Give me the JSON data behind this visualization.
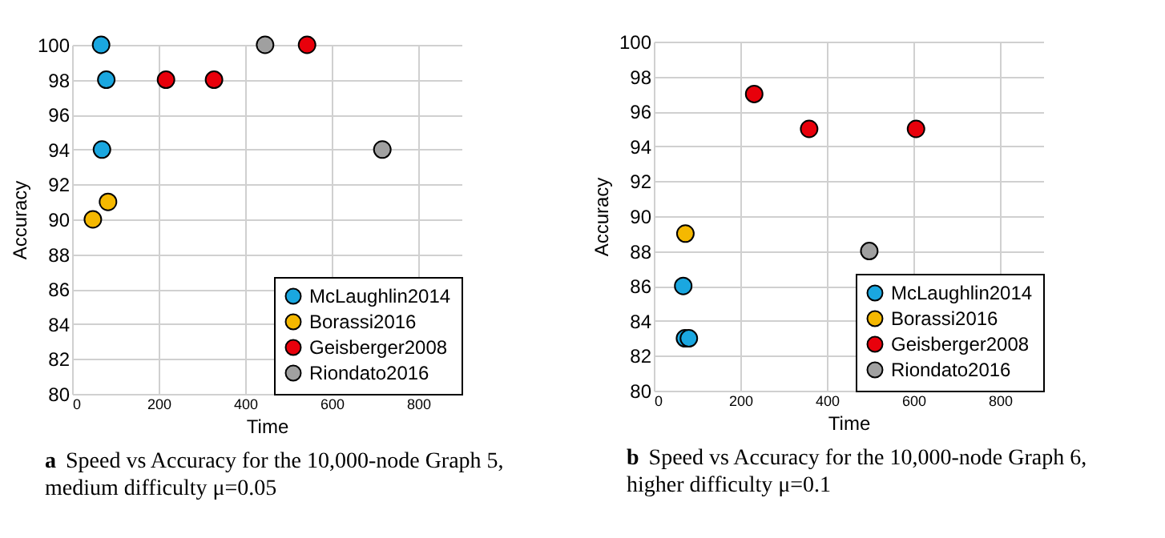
{
  "chart_data": [
    {
      "type": "scatter",
      "title": "a",
      "subtitle": "Speed vs Accuracy for the 10,000-node Graph 5, medium difficulty μ=0.05",
      "xlabel": "Time",
      "ylabel": "Accuracy",
      "xlim": [
        0,
        900
      ],
      "xticks": [
        0,
        200,
        400,
        600,
        800
      ],
      "ylim": [
        80,
        100
      ],
      "yticks": [
        80,
        82,
        84,
        86,
        88,
        90,
        92,
        94,
        96,
        98,
        100
      ],
      "grid": true,
      "legend": "bottom right",
      "marker": "circle",
      "series": [
        {
          "name": "McLaughlin2014",
          "color": "#1aa7e0",
          "x": [
            67,
            79,
            69
          ],
          "values": [
            100,
            98,
            94
          ]
        },
        {
          "name": "Borassi2016",
          "color": "#f5b800",
          "x": [
            48,
            83
          ],
          "values": [
            90,
            91
          ]
        },
        {
          "name": "Geisberger2008",
          "color": "#e8000b",
          "x": [
            217,
            328,
            543
          ],
          "values": [
            98,
            98,
            100
          ]
        },
        {
          "name": "Riondato2016",
          "color": "#a0a0a0",
          "x": [
            446,
            717
          ],
          "values": [
            100,
            94
          ]
        }
      ]
    },
    {
      "type": "scatter",
      "title": "b",
      "subtitle": "Speed vs Accuracy for the 10,000-node Graph 6, higher difficulty μ=0.1",
      "xlabel": "Time",
      "ylabel": "Accuracy",
      "xlim": [
        0,
        900
      ],
      "xticks": [
        0,
        200,
        400,
        600,
        800
      ],
      "ylim": [
        80,
        100
      ],
      "yticks": [
        80,
        82,
        84,
        86,
        88,
        90,
        92,
        94,
        96,
        98,
        100
      ],
      "grid": true,
      "legend": "bottom right",
      "marker": "circle",
      "series": [
        {
          "name": "McLaughlin2014",
          "color": "#1aa7e0",
          "x": [
            68,
            72,
            81
          ],
          "values": [
            86,
            83,
            83
          ]
        },
        {
          "name": "Borassi2016",
          "color": "#f5b800",
          "x": [
            73
          ],
          "values": [
            89
          ]
        },
        {
          "name": "Geisberger2008",
          "color": "#e8000b",
          "x": [
            232,
            359,
            606
          ],
          "values": [
            97,
            95,
            95
          ]
        },
        {
          "name": "Riondato2016",
          "color": "#a0a0a0",
          "x": [
            498
          ],
          "values": [
            88
          ]
        }
      ]
    }
  ]
}
